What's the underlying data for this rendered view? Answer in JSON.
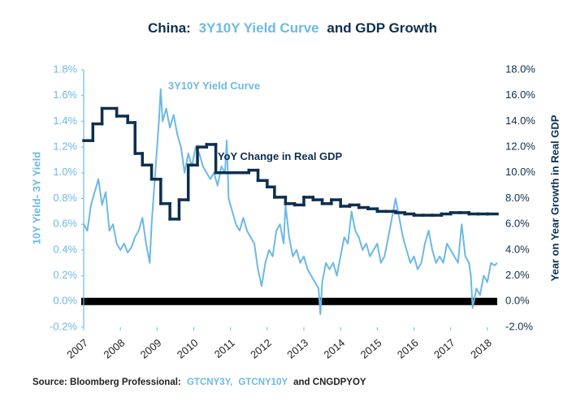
{
  "chart_data": {
    "type": "line",
    "title": [
      "China:",
      "3Y10Y Yield Curve",
      "and GDP Growth"
    ],
    "source": [
      "Source: Bloomberg Professional:",
      "GTCNY3Y,",
      "GTCNY10Y",
      "and CNGDPYOY"
    ],
    "ylabel": "10Y Yield- 3Y Yield",
    "y2label": "Year on Year Growth in Real GDP",
    "xlim": [
      2007,
      2018.27
    ],
    "xticks": [
      2007,
      2008,
      2009,
      2010,
      2011,
      2012,
      2013,
      2014,
      2015,
      2016,
      2017,
      2018
    ],
    "ylim": [
      -0.2,
      1.8
    ],
    "yticks": [
      {
        "value": -0.2,
        "label": "-0.2%"
      },
      {
        "value": 0,
        "label": "0.0%"
      },
      {
        "value": 0.2,
        "label": "0.2%"
      },
      {
        "value": 0.4,
        "label": "0.4%"
      },
      {
        "value": 0.6,
        "label": "0.6%"
      },
      {
        "value": 0.8,
        "label": "0.8%"
      },
      {
        "value": 1.0,
        "label": "1.0%"
      },
      {
        "value": 1.2,
        "label": "1.2%"
      },
      {
        "value": 1.4,
        "label": "1.4%"
      },
      {
        "value": 1.6,
        "label": "1.6%"
      },
      {
        "value": 1.8,
        "label": "1.8%"
      }
    ],
    "y2lim": [
      -2,
      18
    ],
    "y2ticks": [
      {
        "value": -2,
        "label": "-2.0%"
      },
      {
        "value": 0,
        "label": "0.0%"
      },
      {
        "value": 2,
        "label": "2.0%"
      },
      {
        "value": 4,
        "label": "4.0%"
      },
      {
        "value": 6,
        "label": "6.0%"
      },
      {
        "value": 8,
        "label": "8.0%"
      },
      {
        "value": 10,
        "label": "10.0%"
      },
      {
        "value": 12,
        "label": "12.0%"
      },
      {
        "value": 14,
        "label": "14.0%"
      },
      {
        "value": 16,
        "label": "16.0%"
      },
      {
        "value": 18,
        "label": "18.0%"
      }
    ],
    "zero_line": true,
    "series": [
      {
        "name": "3Y10Y Yield Curve",
        "color": "#6cb9e5",
        "axis": "y",
        "x": [
          2007.0,
          2007.1,
          2007.2,
          2007.3,
          2007.4,
          2007.5,
          2007.6,
          2007.7,
          2007.8,
          2007.9,
          2008.0,
          2008.1,
          2008.2,
          2008.3,
          2008.4,
          2008.5,
          2008.6,
          2008.7,
          2008.8,
          2008.85,
          2008.95,
          2009.05,
          2009.1,
          2009.15,
          2009.25,
          2009.35,
          2009.45,
          2009.55,
          2009.65,
          2009.75,
          2009.85,
          2009.95,
          2010.05,
          2010.15,
          2010.25,
          2010.35,
          2010.45,
          2010.55,
          2010.65,
          2010.75,
          2010.85,
          2010.9,
          2010.95,
          2011.05,
          2011.15,
          2011.25,
          2011.35,
          2011.45,
          2011.55,
          2011.65,
          2011.75,
          2011.85,
          2011.95,
          2012.05,
          2012.15,
          2012.25,
          2012.35,
          2012.45,
          2012.5,
          2012.6,
          2012.7,
          2012.8,
          2012.9,
          2013.0,
          2013.1,
          2013.2,
          2013.3,
          2013.4,
          2013.45,
          2013.5,
          2013.6,
          2013.7,
          2013.8,
          2013.9,
          2014.0,
          2014.1,
          2014.2,
          2014.3,
          2014.4,
          2014.5,
          2014.6,
          2014.7,
          2014.8,
          2014.9,
          2015.0,
          2015.1,
          2015.2,
          2015.3,
          2015.4,
          2015.5,
          2015.6,
          2015.7,
          2015.8,
          2015.9,
          2016.0,
          2016.1,
          2016.2,
          2016.3,
          2016.4,
          2016.5,
          2016.6,
          2016.7,
          2016.8,
          2016.9,
          2017.0,
          2017.1,
          2017.2,
          2017.3,
          2017.4,
          2017.5,
          2017.55,
          2017.6,
          2017.7,
          2017.8,
          2017.9,
          2018.0,
          2018.1,
          2018.2,
          2018.27
        ],
        "values": [
          0.6,
          0.55,
          0.75,
          0.85,
          0.95,
          0.75,
          0.85,
          0.55,
          0.6,
          0.45,
          0.4,
          0.45,
          0.38,
          0.42,
          0.5,
          0.55,
          0.65,
          0.45,
          0.3,
          0.6,
          1.0,
          1.4,
          1.65,
          1.4,
          1.5,
          1.35,
          1.45,
          1.3,
          1.2,
          1.0,
          1.15,
          1.05,
          1.2,
          1.15,
          1.05,
          1.0,
          0.95,
          1.0,
          0.9,
          1.05,
          1.0,
          1.25,
          0.8,
          0.7,
          0.6,
          0.55,
          0.65,
          0.55,
          0.5,
          0.45,
          0.25,
          0.12,
          0.3,
          0.4,
          0.35,
          0.55,
          0.6,
          0.45,
          0.75,
          0.5,
          0.35,
          0.4,
          0.3,
          0.35,
          0.25,
          0.2,
          0.15,
          0.1,
          -0.1,
          0.15,
          0.3,
          0.25,
          0.3,
          0.2,
          0.35,
          0.5,
          0.45,
          0.7,
          0.55,
          0.5,
          0.4,
          0.45,
          0.35,
          0.4,
          0.45,
          0.3,
          0.35,
          0.5,
          0.65,
          0.8,
          0.65,
          0.5,
          0.4,
          0.3,
          0.35,
          0.25,
          0.3,
          0.45,
          0.55,
          0.4,
          0.3,
          0.35,
          0.3,
          0.45,
          0.4,
          0.35,
          0.3,
          0.6,
          0.35,
          0.3,
          0.2,
          -0.05,
          0.1,
          0.05,
          0.2,
          0.15,
          0.3,
          0.28,
          0.3
        ],
        "annotation": {
          "text": "3Y10Y Yield Curve",
          "x": 2009.3,
          "y": 1.67
        }
      },
      {
        "name": "YoY Change in Real GDP",
        "color": "#0d2f4f",
        "axis": "y2",
        "drawstyle": "steps-post",
        "x": [
          2007.0,
          2007.25,
          2007.5,
          2007.9,
          2008.2,
          2008.4,
          2008.6,
          2008.85,
          2009.1,
          2009.35,
          2009.6,
          2009.85,
          2010.1,
          2010.35,
          2010.6,
          2011.0,
          2011.5,
          2011.75,
          2012.0,
          2012.2,
          2012.5,
          2012.75,
          2013.0,
          2013.25,
          2013.5,
          2013.75,
          2014.0,
          2014.25,
          2014.5,
          2014.75,
          2015.0,
          2015.25,
          2015.5,
          2015.75,
          2016.0,
          2016.25,
          2016.5,
          2016.75,
          2017.0,
          2017.25,
          2017.5,
          2017.75,
          2018.0
        ],
        "values": [
          12.5,
          13.8,
          15.0,
          14.4,
          13.9,
          11.5,
          10.6,
          9.5,
          7.6,
          6.4,
          7.9,
          10.6,
          12.0,
          12.2,
          10.0,
          10.0,
          10.2,
          9.4,
          8.9,
          8.1,
          7.6,
          7.5,
          8.1,
          7.9,
          7.6,
          7.9,
          7.4,
          7.5,
          7.3,
          7.2,
          7.0,
          7.0,
          6.9,
          6.8,
          6.7,
          6.7,
          6.7,
          6.8,
          6.9,
          6.9,
          6.8,
          6.8,
          6.8
        ],
        "annotation": {
          "text": "YoY Change in Real GDP",
          "x": 2010.65,
          "y": 11.2
        }
      }
    ]
  }
}
